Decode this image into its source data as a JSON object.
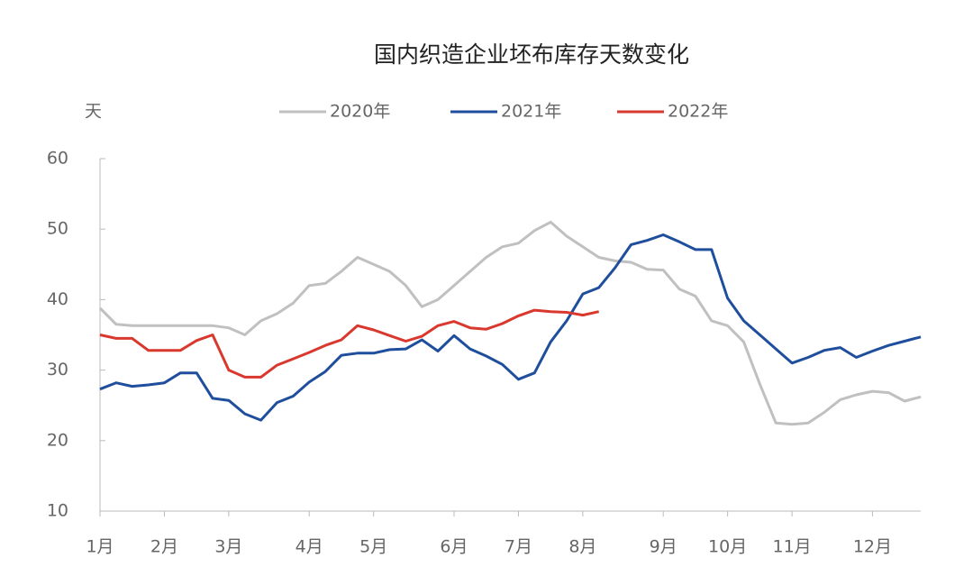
{
  "chart_data": {
    "type": "line",
    "title": "国内织造企业坯布库存天数变化",
    "y_unit": "天",
    "categories": [
      "1月",
      null,
      null,
      null,
      "2月",
      null,
      null,
      null,
      "3月",
      null,
      null,
      null,
      null,
      "4月",
      null,
      null,
      null,
      "5月",
      null,
      null,
      null,
      null,
      "6月",
      null,
      null,
      null,
      "7月",
      null,
      null,
      null,
      "8月",
      null,
      null,
      null,
      null,
      "9月",
      null,
      null,
      null,
      "10月",
      null,
      null,
      null,
      "11月",
      null,
      null,
      null,
      null,
      "12月",
      null,
      null,
      null
    ],
    "series": [
      {
        "name": "2020年",
        "color": "#c0c0c0",
        "values": [
          38.8,
          36.5,
          36.3,
          36.3,
          36.3,
          36.3,
          36.3,
          36.3,
          36,
          35,
          37,
          38,
          39.5,
          42,
          42.3,
          44,
          46,
          45,
          44,
          42,
          39,
          40,
          42,
          44,
          46,
          47.5,
          48,
          49.8,
          51,
          49,
          47.5,
          46,
          45.5,
          45.3,
          44.3,
          44.2,
          41.5,
          40.5,
          37,
          36.3,
          34,
          28,
          22.5,
          22.3,
          22.5,
          24,
          25.8,
          26.5,
          27,
          26.8,
          25.6,
          26.2
        ]
      },
      {
        "name": "2021年",
        "color": "#1f4e9c",
        "values": [
          27.3,
          28.2,
          27.7,
          27.9,
          28.2,
          29.6,
          29.6,
          26,
          25.7,
          23.8,
          22.9,
          25.4,
          26.3,
          28.3,
          29.8,
          32.1,
          32.4,
          32.4,
          32.9,
          33,
          34.3,
          32.7,
          34.9,
          33,
          32,
          30.8,
          28.7,
          29.6,
          34,
          37,
          40.8,
          41.7,
          44.5,
          47.8,
          48.4,
          49.2,
          48.2,
          47.1,
          47.1,
          40.2,
          37,
          35,
          33,
          31,
          31.8,
          32.8,
          33.2,
          31.8,
          32.7,
          33.5,
          34.1,
          34.7
        ]
      },
      {
        "name": "2022年",
        "color": "#d9382e",
        "values": [
          35,
          34.5,
          34.5,
          32.8,
          32.8,
          32.8,
          34.2,
          35,
          30,
          29,
          29,
          30.7,
          31.6,
          32.5,
          33.5,
          34.3,
          36.3,
          35.7,
          34.9,
          34.1,
          34.8,
          36.3,
          36.9,
          36,
          35.8,
          36.6,
          37.7,
          38.5,
          38.3,
          38.2,
          37.8,
          38.3,
          null,
          null,
          null,
          null,
          null,
          null,
          null,
          null,
          null,
          null,
          null,
          null,
          null,
          null,
          null,
          null,
          null,
          null,
          null,
          null
        ]
      }
    ],
    "ylim": [
      10,
      60
    ],
    "yticks": [
      10,
      20,
      30,
      40,
      50,
      60
    ],
    "grid": false
  }
}
